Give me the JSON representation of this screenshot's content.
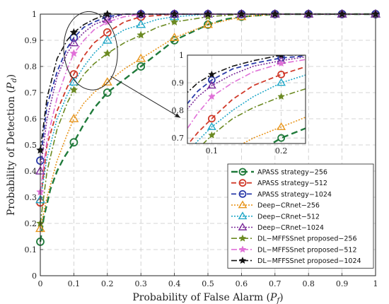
{
  "chart_data": {
    "type": "line",
    "xlabel": "Probability of False Alarm",
    "xlabel_sub": "P",
    "xlabel_subsub": "f",
    "ylabel": "Probability of Detection",
    "ylabel_sub": "P",
    "ylabel_subsub": "d",
    "xlim": [
      0,
      1
    ],
    "ylim": [
      0,
      1
    ],
    "xticks": [
      "0",
      "0.1",
      "0.2",
      "0.3",
      "0.4",
      "0.5",
      "0.6",
      "0.7",
      "0.8",
      "0.9",
      "1"
    ],
    "yticks": [
      "0",
      "0.1",
      "0.2",
      "0.3",
      "0.4",
      "0.5",
      "0.6",
      "0.7",
      "0.8",
      "0.9",
      "1"
    ],
    "grid": true,
    "legend_position": "bottom-right",
    "series": [
      {
        "name": "APASS strategy−256",
        "color": "#1f7a3a",
        "dash": "9,5",
        "width": 2.4,
        "marker": "circle",
        "x": [
          0,
          0.01,
          0.03,
          0.05,
          0.07,
          0.1,
          0.13,
          0.16,
          0.2,
          0.25,
          0.3,
          0.35,
          0.4,
          0.45,
          0.5,
          0.55,
          0.6,
          0.7,
          0.8,
          0.9,
          1.0
        ],
        "y": [
          0.13,
          0.22,
          0.33,
          0.4,
          0.45,
          0.51,
          0.58,
          0.64,
          0.7,
          0.75,
          0.8,
          0.85,
          0.9,
          0.93,
          0.96,
          0.98,
          0.99,
          1.0,
          1.0,
          1.0,
          1.0
        ],
        "marker_x": [
          0,
          0.1,
          0.2,
          0.3,
          0.4,
          0.5,
          0.6,
          0.7,
          0.8,
          0.9,
          1.0
        ]
      },
      {
        "name": "APASS strategy−512",
        "color": "#d03a2a",
        "dash": "7,4",
        "width": 1.8,
        "marker": "circle",
        "x": [
          0,
          0.02,
          0.05,
          0.08,
          0.1,
          0.13,
          0.16,
          0.2,
          0.25,
          0.3,
          0.4,
          0.5,
          0.6,
          0.7,
          0.8,
          0.9,
          1.0
        ],
        "y": [
          0.28,
          0.5,
          0.63,
          0.72,
          0.77,
          0.84,
          0.89,
          0.93,
          0.97,
          0.99,
          1.0,
          1.0,
          1.0,
          1.0,
          1.0,
          1.0,
          1.0
        ],
        "marker_x": [
          0,
          0.1,
          0.2,
          0.3,
          0.4,
          0.5,
          0.6,
          0.7,
          0.8,
          0.9,
          1.0
        ]
      },
      {
        "name": "APASS strategy−1024",
        "color": "#2a3aa8",
        "dash": "7,4",
        "width": 1.8,
        "marker": "circle",
        "x": [
          0,
          0.02,
          0.05,
          0.08,
          0.1,
          0.13,
          0.16,
          0.2,
          0.25,
          0.3,
          0.4,
          0.5,
          0.6,
          0.7,
          0.8,
          0.9,
          1.0
        ],
        "y": [
          0.44,
          0.65,
          0.78,
          0.87,
          0.91,
          0.95,
          0.97,
          0.99,
          1.0,
          1.0,
          1.0,
          1.0,
          1.0,
          1.0,
          1.0,
          1.0,
          1.0
        ],
        "marker_x": [
          0,
          0.1,
          0.2,
          0.3,
          0.4,
          0.5,
          0.6,
          0.7,
          0.8,
          0.9,
          1.0
        ]
      },
      {
        "name": "Deep−CRnet−256",
        "color": "#e8961e",
        "dash": "2,2",
        "width": 1.6,
        "marker": "triangle",
        "x": [
          0,
          0.02,
          0.05,
          0.08,
          0.1,
          0.13,
          0.16,
          0.2,
          0.25,
          0.3,
          0.35,
          0.4,
          0.5,
          0.6,
          0.7,
          0.8,
          0.9,
          1.0
        ],
        "y": [
          0.18,
          0.3,
          0.44,
          0.54,
          0.6,
          0.66,
          0.7,
          0.74,
          0.79,
          0.83,
          0.87,
          0.91,
          0.96,
          0.99,
          1.0,
          1.0,
          1.0,
          1.0
        ],
        "marker_x": [
          0,
          0.1,
          0.2,
          0.3,
          0.4,
          0.5,
          0.6,
          0.7,
          0.8,
          0.9,
          1.0
        ]
      },
      {
        "name": "Deep−CRnet−512",
        "color": "#22a8c8",
        "dash": "2,2",
        "width": 1.6,
        "marker": "triangle",
        "x": [
          0,
          0.02,
          0.05,
          0.08,
          0.1,
          0.13,
          0.16,
          0.2,
          0.25,
          0.3,
          0.35,
          0.4,
          0.5,
          0.6,
          0.7,
          0.8,
          0.9,
          1.0
        ],
        "y": [
          0.29,
          0.45,
          0.6,
          0.69,
          0.74,
          0.8,
          0.85,
          0.9,
          0.94,
          0.96,
          0.98,
          0.99,
          1.0,
          1.0,
          1.0,
          1.0,
          1.0,
          1.0
        ],
        "marker_x": [
          0,
          0.1,
          0.2,
          0.3,
          0.4,
          0.5,
          0.6,
          0.7,
          0.8,
          0.9,
          1.0
        ]
      },
      {
        "name": "Deep−CRnet−1024",
        "color": "#7b2a9a",
        "dash": "2,2",
        "width": 1.6,
        "marker": "triangle",
        "x": [
          0,
          0.02,
          0.05,
          0.08,
          0.1,
          0.13,
          0.16,
          0.2,
          0.25,
          0.3,
          0.4,
          0.5,
          0.6,
          0.7,
          0.8,
          0.9,
          1.0
        ],
        "y": [
          0.4,
          0.6,
          0.76,
          0.85,
          0.89,
          0.93,
          0.96,
          0.98,
          1.0,
          1.0,
          1.0,
          1.0,
          1.0,
          1.0,
          1.0,
          1.0,
          1.0
        ],
        "marker_x": [
          0,
          0.1,
          0.2,
          0.3,
          0.4,
          0.5,
          0.6,
          0.7,
          0.8,
          0.9,
          1.0
        ]
      },
      {
        "name": "DL−MFFSSnet proposed−256",
        "color": "#6b8a22",
        "dash": "8,3,2,3",
        "width": 1.6,
        "marker": "star",
        "x": [
          0,
          0.02,
          0.05,
          0.08,
          0.1,
          0.13,
          0.16,
          0.2,
          0.25,
          0.3,
          0.35,
          0.4,
          0.5,
          0.6,
          0.7,
          0.8,
          0.9,
          1.0
        ],
        "y": [
          0.2,
          0.4,
          0.56,
          0.66,
          0.71,
          0.77,
          0.81,
          0.85,
          0.89,
          0.92,
          0.95,
          0.97,
          0.99,
          1.0,
          1.0,
          1.0,
          1.0,
          1.0
        ],
        "marker_x": [
          0,
          0.1,
          0.2,
          0.3,
          0.4,
          0.5,
          0.6,
          0.7,
          0.8,
          0.9,
          1.0
        ]
      },
      {
        "name": "DL−MFFSSnet proposed−512",
        "color": "#e070d8",
        "dash": "8,3,2,3",
        "width": 1.6,
        "marker": "star",
        "x": [
          0,
          0.02,
          0.05,
          0.08,
          0.1,
          0.13,
          0.16,
          0.2,
          0.25,
          0.3,
          0.4,
          0.5,
          0.6,
          0.7,
          0.8,
          0.9,
          1.0
        ],
        "y": [
          0.32,
          0.52,
          0.68,
          0.79,
          0.85,
          0.9,
          0.94,
          0.97,
          0.99,
          1.0,
          1.0,
          1.0,
          1.0,
          1.0,
          1.0,
          1.0,
          1.0
        ],
        "marker_x": [
          0,
          0.1,
          0.2,
          0.3,
          0.4,
          0.5,
          0.6,
          0.7,
          0.8,
          0.9,
          1.0
        ]
      },
      {
        "name": "DL−MFFSSnet proposed−1024",
        "color": "#111111",
        "dash": "8,3,2,3",
        "width": 1.6,
        "marker": "star",
        "x": [
          0,
          0.02,
          0.05,
          0.08,
          0.1,
          0.13,
          0.16,
          0.2,
          0.25,
          0.3,
          0.4,
          0.5,
          0.6,
          0.7,
          0.8,
          0.9,
          1.0
        ],
        "y": [
          0.48,
          0.68,
          0.83,
          0.9,
          0.93,
          0.96,
          0.98,
          1.0,
          1.0,
          1.0,
          1.0,
          1.0,
          1.0,
          1.0,
          1.0,
          1.0,
          1.0
        ],
        "marker_x": [
          0,
          0.1,
          0.2,
          0.3,
          0.4,
          0.5,
          0.6,
          0.7,
          0.8,
          0.9,
          1.0
        ]
      }
    ],
    "inset": {
      "xlim": [
        0.065,
        0.235
      ],
      "ylim": [
        0.68,
        1.0
      ],
      "xticks": [
        "0.1",
        "0.2"
      ],
      "yticks": [
        "0.7",
        "0.8",
        "0.9",
        "1"
      ],
      "grid": true
    },
    "annotation": {
      "zoom_region_center": [
        0.15,
        0.86
      ],
      "zoom_region_rx": 0.08,
      "zoom_region_ry": 0.15
    }
  }
}
